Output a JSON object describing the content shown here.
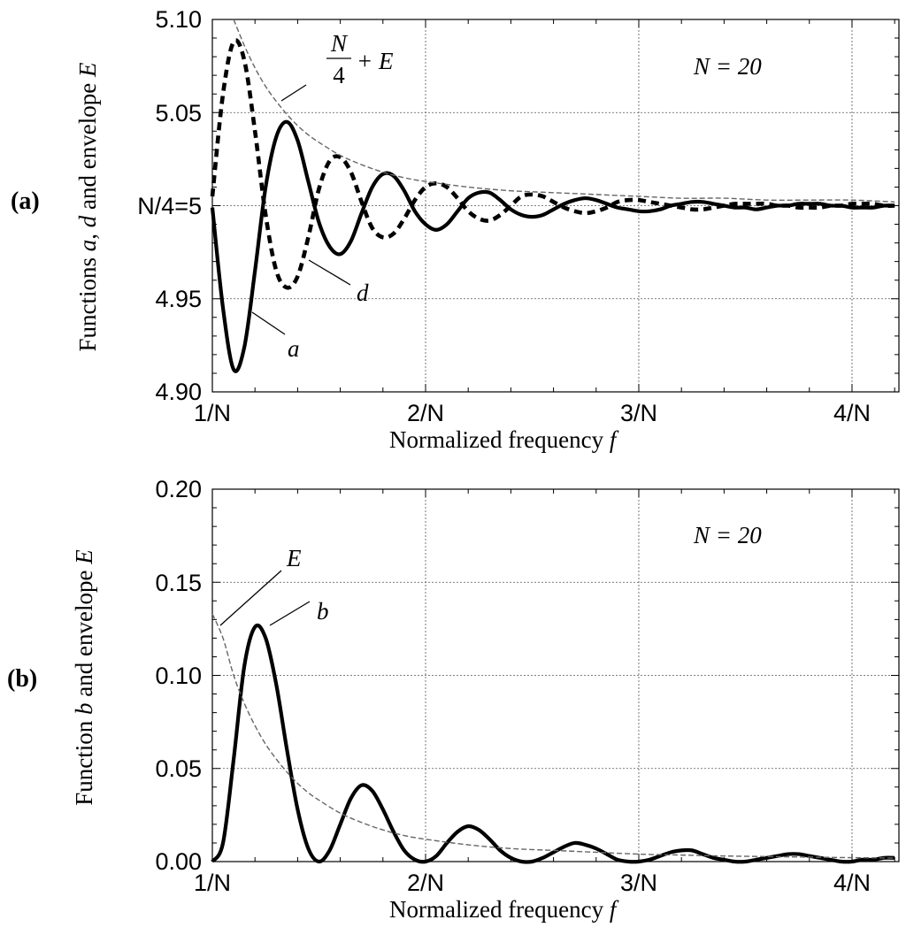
{
  "chart_data": [
    {
      "type": "line",
      "panel_label": "(a)",
      "annotation": "N = 20",
      "xlabel": "Normalized frequency",
      "xlabel_var": "f",
      "ylabel_parts": [
        "Functions ",
        "a",
        ", ",
        "d",
        " and envelope ",
        "E"
      ],
      "xlim": [
        1.0,
        4.22
      ],
      "ylim": [
        4.9,
        5.1
      ],
      "xticks": [
        1,
        2,
        3,
        4
      ],
      "xtick_labels": [
        "1/N",
        "2/N",
        "3/N",
        "4/N"
      ],
      "yticks": [
        4.9,
        4.95,
        5.0,
        5.05,
        5.1
      ],
      "ytick_labels": [
        "4.90",
        "4.95",
        "N/4=5",
        "5.05",
        "5.10"
      ],
      "grid": true,
      "series": [
        {
          "name": "a",
          "style": "solid",
          "x": [
            1.0,
            1.05,
            1.1,
            1.15,
            1.2,
            1.25,
            1.3,
            1.35,
            1.4,
            1.45,
            1.5,
            1.55,
            1.6,
            1.65,
            1.7,
            1.75,
            1.8,
            1.85,
            1.9,
            1.95,
            2.0,
            2.05,
            2.1,
            2.15,
            2.2,
            2.25,
            2.3,
            2.35,
            2.4,
            2.45,
            2.5,
            2.55,
            2.6,
            2.65,
            2.7,
            2.75,
            2.8,
            2.85,
            2.9,
            2.95,
            3.0,
            3.05,
            3.1,
            3.15,
            3.2,
            3.25,
            3.3,
            3.35,
            3.4,
            3.45,
            3.5,
            3.55,
            3.6,
            3.65,
            3.7,
            3.75,
            3.8,
            3.85,
            3.9,
            3.95,
            4.0,
            4.05,
            4.1,
            4.15,
            4.2
          ],
          "y": [
            4.999,
            4.945,
            4.912,
            4.924,
            4.965,
            5.01,
            5.037,
            5.045,
            5.035,
            5.013,
            4.991,
            4.978,
            4.974,
            4.981,
            4.996,
            5.01,
            5.017,
            5.016,
            5.008,
            4.997,
            4.99,
            4.987,
            4.99,
            4.997,
            5.004,
            5.007,
            5.007,
            5.003,
            4.998,
            4.995,
            4.994,
            4.995,
            4.998,
            5.001,
            5.003,
            5.004,
            5.003,
            5.001,
            4.999,
            4.998,
            4.997,
            4.997,
            4.998,
            5.0,
            5.001,
            5.002,
            5.002,
            5.001,
            5.0,
            4.999,
            4.999,
            4.998,
            4.999,
            5.0,
            5.0,
            5.001,
            5.001,
            5.001,
            5.0,
            5.0,
            4.999,
            4.999,
            4.999,
            5.0,
            5.0
          ]
        },
        {
          "name": "d",
          "style": "dashed-bold",
          "x": [
            1.0,
            1.05,
            1.1,
            1.15,
            1.2,
            1.25,
            1.3,
            1.35,
            1.4,
            1.45,
            1.5,
            1.55,
            1.6,
            1.65,
            1.7,
            1.75,
            1.8,
            1.85,
            1.9,
            1.95,
            2.0,
            2.05,
            2.1,
            2.15,
            2.2,
            2.25,
            2.3,
            2.35,
            2.4,
            2.45,
            2.5,
            2.55,
            2.6,
            2.65,
            2.7,
            2.75,
            2.8,
            2.85,
            2.9,
            2.95,
            3.0,
            3.05,
            3.1,
            3.15,
            3.2,
            3.25,
            3.3,
            3.35,
            3.4,
            3.45,
            3.5,
            3.55,
            3.6,
            3.65,
            3.7,
            3.75,
            3.8,
            3.85,
            3.9,
            3.95,
            4.0,
            4.05,
            4.1,
            4.15,
            4.2
          ],
          "y": [
            5.005,
            5.06,
            5.088,
            5.078,
            5.04,
            4.995,
            4.965,
            4.956,
            4.962,
            4.983,
            5.009,
            5.024,
            5.026,
            5.018,
            5.002,
            4.988,
            4.983,
            4.985,
            4.993,
            5.003,
            5.01,
            5.012,
            5.01,
            5.004,
            4.997,
            4.993,
            4.992,
            4.995,
            5.0,
            5.005,
            5.006,
            5.005,
            5.002,
            4.999,
            4.997,
            4.996,
            4.997,
            4.999,
            5.002,
            5.003,
            5.003,
            5.002,
            5.001,
            5.0,
            4.999,
            4.998,
            4.998,
            4.999,
            5.0,
            5.001,
            5.001,
            5.001,
            5.001,
            5.0,
            5.0,
            4.999,
            4.999,
            4.999,
            5.0,
            5.0,
            5.001,
            5.001,
            5.001,
            5.0,
            5.0
          ]
        },
        {
          "name": "N/4 + E",
          "style": "dashed-light",
          "x": [
            1.1,
            1.15,
            1.2,
            1.25,
            1.3,
            1.35,
            1.4,
            1.45,
            1.5,
            1.6,
            1.7,
            1.8,
            1.9,
            2.0,
            2.2,
            2.4,
            2.6,
            2.8,
            3.0,
            3.2,
            3.4,
            3.6,
            3.8,
            4.0,
            4.2
          ],
          "y": [
            5.1,
            5.086,
            5.074,
            5.064,
            5.056,
            5.049,
            5.043,
            5.038,
            5.034,
            5.027,
            5.022,
            5.018,
            5.015,
            5.013,
            5.01,
            5.008,
            5.007,
            5.006,
            5.005,
            5.004,
            5.004,
            5.003,
            5.003,
            5.003,
            5.002
          ]
        }
      ],
      "curve_labels": {
        "envelope_numerator": "N",
        "envelope_denominator": "4",
        "envelope_rest": "+ E",
        "a": "a",
        "d": "d"
      }
    },
    {
      "type": "line",
      "panel_label": "(b)",
      "annotation": "N = 20",
      "xlabel": "Normalized frequency",
      "xlabel_var": "f",
      "ylabel_parts": [
        "Function ",
        "b",
        " and envelope ",
        "E"
      ],
      "xlim": [
        1.0,
        4.22
      ],
      "ylim": [
        0.0,
        0.2
      ],
      "xticks": [
        1,
        2,
        3,
        4
      ],
      "xtick_labels": [
        "1/N",
        "2/N",
        "3/N",
        "4/N"
      ],
      "yticks": [
        0.0,
        0.05,
        0.1,
        0.15,
        0.2
      ],
      "ytick_labels": [
        "0.00",
        "0.05",
        "0.10",
        "0.15",
        "0.20"
      ],
      "grid": true,
      "series": [
        {
          "name": "b",
          "style": "solid",
          "x": [
            1.0,
            1.05,
            1.1,
            1.15,
            1.2,
            1.25,
            1.3,
            1.35,
            1.4,
            1.45,
            1.5,
            1.55,
            1.6,
            1.65,
            1.7,
            1.75,
            1.8,
            1.85,
            1.9,
            1.95,
            2.0,
            2.05,
            2.1,
            2.15,
            2.2,
            2.25,
            2.3,
            2.35,
            2.4,
            2.45,
            2.5,
            2.55,
            2.6,
            2.65,
            2.7,
            2.75,
            2.8,
            2.85,
            2.9,
            2.95,
            3.0,
            3.05,
            3.1,
            3.15,
            3.2,
            3.25,
            3.3,
            3.35,
            3.4,
            3.45,
            3.5,
            3.55,
            3.6,
            3.65,
            3.7,
            3.75,
            3.8,
            3.85,
            3.9,
            3.95,
            4.0,
            4.05,
            4.1,
            4.15,
            4.2
          ],
          "y": [
            0.0,
            0.01,
            0.055,
            0.105,
            0.126,
            0.12,
            0.095,
            0.06,
            0.028,
            0.007,
            0.0,
            0.006,
            0.02,
            0.034,
            0.041,
            0.038,
            0.028,
            0.016,
            0.006,
            0.001,
            0.0,
            0.003,
            0.01,
            0.016,
            0.019,
            0.017,
            0.012,
            0.006,
            0.002,
            0.0,
            0.0,
            0.002,
            0.005,
            0.008,
            0.01,
            0.009,
            0.007,
            0.004,
            0.001,
            0.0,
            0.0,
            0.001,
            0.003,
            0.005,
            0.006,
            0.006,
            0.004,
            0.002,
            0.001,
            0.0,
            0.0,
            0.001,
            0.002,
            0.003,
            0.004,
            0.004,
            0.003,
            0.002,
            0.001,
            0.0,
            0.0,
            0.001,
            0.001,
            0.002,
            0.002
          ]
        },
        {
          "name": "E",
          "style": "dashed-light",
          "x": [
            1.0,
            1.05,
            1.1,
            1.15,
            1.2,
            1.25,
            1.3,
            1.35,
            1.4,
            1.45,
            1.5,
            1.6,
            1.7,
            1.8,
            1.9,
            2.0,
            2.2,
            2.4,
            2.6,
            2.8,
            3.0,
            3.2,
            3.4,
            3.6,
            3.8,
            4.0,
            4.2
          ],
          "y": [
            0.133,
            0.12,
            0.1,
            0.085,
            0.073,
            0.063,
            0.055,
            0.048,
            0.042,
            0.037,
            0.033,
            0.026,
            0.021,
            0.017,
            0.014,
            0.012,
            0.009,
            0.007,
            0.006,
            0.005,
            0.004,
            0.0035,
            0.003,
            0.0027,
            0.0024,
            0.0021,
            0.0019
          ]
        }
      ],
      "curve_labels": {
        "E": "E",
        "b": "b"
      }
    }
  ]
}
